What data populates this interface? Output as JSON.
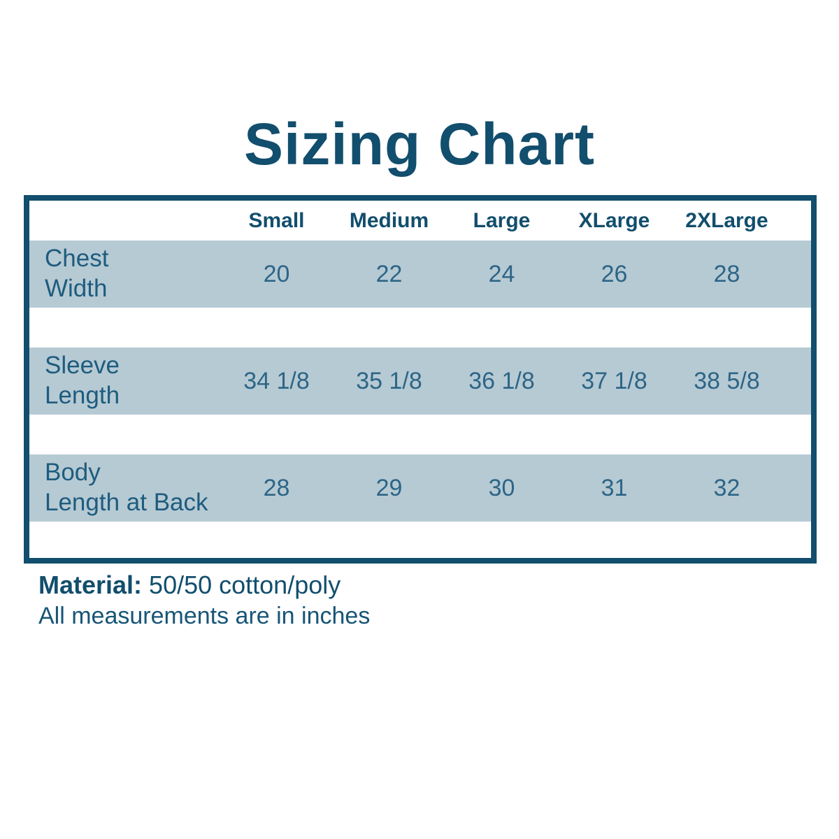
{
  "page": {
    "title": "Sizing Chart",
    "material_label": "Material:",
    "material_value": "50/50 cotton/poly",
    "note": "All measurements are in inches"
  },
  "chart_data": {
    "type": "table",
    "title": "Sizing Chart",
    "columns": [
      "Small",
      "Medium",
      "Large",
      "XLarge",
      "2XLarge"
    ],
    "rows": [
      {
        "label": "Chest Width",
        "label_display": "Chest\nWidth",
        "values": [
          "20",
          "22",
          "24",
          "26",
          "28"
        ]
      },
      {
        "label": "Sleeve Length",
        "label_display": "Sleeve\nLength",
        "values": [
          "34 1/8",
          "35 1/8",
          "36 1/8",
          "37 1/8",
          "38 5/8"
        ]
      },
      {
        "label": "Body Length at Back",
        "label_display": "Body\nLength at Back",
        "values": [
          "28",
          "29",
          "30",
          "31",
          "32"
        ]
      }
    ],
    "units": "inches",
    "notes": [
      "Material: 50/50 cotton/poly",
      "All measurements are in inches"
    ],
    "layout": {
      "grid": false,
      "legend": "none",
      "row_striping": "data rows shaded, spacer rows white"
    },
    "colors": {
      "accent_dark": "#124e6d",
      "row_background": "#b6cad4",
      "label_text": "#1e5c7e",
      "value_text": "#2d6586",
      "background": "#ffffff"
    }
  }
}
